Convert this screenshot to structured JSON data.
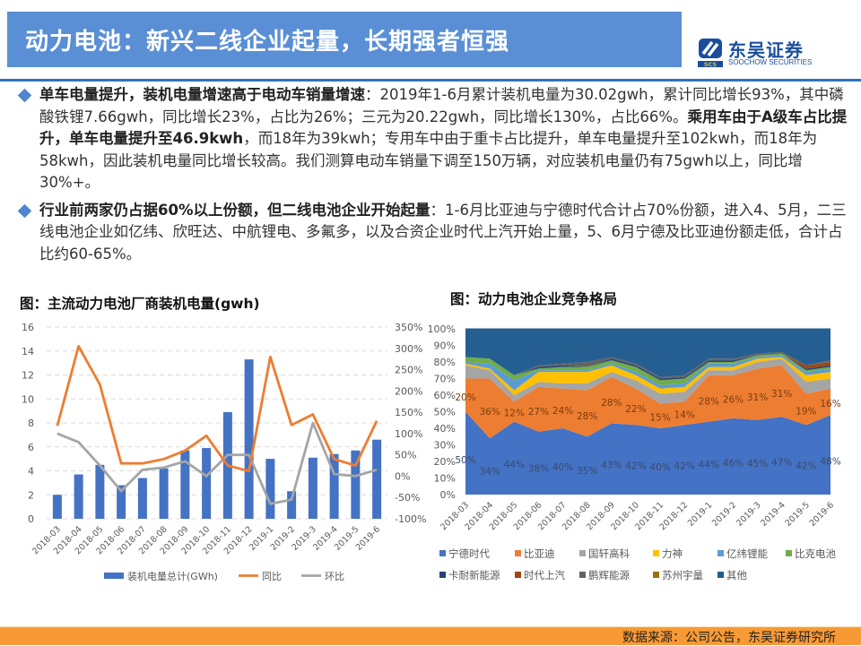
{
  "header": {
    "title": "动力电池：新兴二线企业起量，长期强者恒强",
    "logo_cn": "东吴证券",
    "logo_en": "SOOCHOW SECURITIES",
    "logo_abbr": "SCS"
  },
  "bullets": [
    {
      "bold_lead": "单车电量提升，装机电量增速高于电动车销量增速",
      "text1": "：2019年1-6月累计装机电量为30.02gwh，累计同比增长93%，其中磷酸铁锂7.66gwh，同比增长23%，占比为26%；三元为20.22gwh，同比增长130%，占比66%。",
      "bold_mid": "乘用车由于A级车占比提升，单车电量提升至46.9kwh",
      "text2": "，而18年为39kwh；专用车中由于重卡占比提升，单车电量提升至102kwh，而18年为58kwh，因此装机电量同比增长较高。我们测算电动车销量下调至150万辆，对应装机电量仍有75gwh以上，同比增30%+。"
    },
    {
      "bold_lead": "行业前两家仍占据60%以上份额，但二线电池企业开始起量",
      "text1": "：1-6月比亚迪与宁德时代合计占70%份额，进入4、5月，二三线电池企业如亿纬、欣旺达、中航锂电、多氟多，以及合资企业时代上汽开始上量，5、6月宁德及比亚迪份额走低，合计占比约60-65%。"
    }
  ],
  "charts": {
    "left_title": "图：主流动力电池厂商装机电量(gwh)",
    "right_title": "图：动力电池企业竞争格局"
  },
  "footer": {
    "source": "数据来源：公司公告，东吴证券研究所"
  },
  "chart_data": [
    {
      "type": "bar",
      "title": "图：主流动力电池厂商装机电量(gwh)",
      "categories": [
        "2018-03",
        "2018-04",
        "2018-05",
        "2018-06",
        "2018-07",
        "2018-08",
        "2018-09",
        "2018-10",
        "2018-11",
        "2018-12",
        "2019-1",
        "2019-2",
        "2019-3",
        "2019-4",
        "2019-5",
        "2019-6"
      ],
      "series": [
        {
          "name": "装机电量总计(GWh)",
          "type": "bar",
          "axis": "left",
          "color": "#4472c4",
          "values": [
            2.0,
            3.7,
            4.5,
            2.8,
            3.4,
            4.2,
            5.7,
            5.9,
            8.9,
            13.3,
            5.0,
            2.3,
            5.1,
            5.4,
            5.7,
            6.6
          ]
        },
        {
          "name": "同比",
          "type": "line",
          "axis": "right",
          "color": "#ed7d31",
          "values": [
            118,
            305,
            215,
            30,
            30,
            40,
            60,
            95,
            25,
            12,
            280,
            120,
            145,
            40,
            25,
            130
          ]
        },
        {
          "name": "环比",
          "type": "line",
          "axis": "right",
          "color": "#a5a5a5",
          "values": [
            100,
            80,
            25,
            -35,
            15,
            20,
            35,
            0,
            50,
            50,
            -65,
            -55,
            125,
            5,
            0,
            15
          ]
        }
      ],
      "ylim_left": [
        0,
        16
      ],
      "yticks_left": [
        0,
        2,
        4,
        6,
        8,
        10,
        12,
        14,
        16
      ],
      "ylim_right": [
        -100,
        350
      ],
      "yticks_right": [
        "-100%",
        "-50%",
        "0%",
        "50%",
        "100%",
        "150%",
        "200%",
        "250%",
        "300%",
        "350%"
      ],
      "grid": true,
      "legend_position": "bottom"
    },
    {
      "type": "area",
      "stacked_percent": true,
      "title": "图：动力电池企业竞争格局",
      "categories": [
        "2018-03",
        "2018-04",
        "2018-05",
        "2018-06",
        "2018-07",
        "2018-08",
        "2018-09",
        "2018-10",
        "2018-11",
        "2018-12",
        "2019-1",
        "2019-2",
        "2019-3",
        "2019-4",
        "2019-5",
        "2019-6"
      ],
      "series": [
        {
          "name": "宁德时代",
          "color": "#4472c4",
          "values": [
            50,
            34,
            44,
            38,
            40,
            35,
            43,
            42,
            40,
            42,
            44,
            46,
            45,
            47,
            42,
            48
          ]
        },
        {
          "name": "比亚迪",
          "color": "#ed7d31",
          "values": [
            20,
            36,
            12,
            27,
            24,
            28,
            28,
            22,
            15,
            14,
            28,
            26,
            31,
            31,
            19,
            16
          ]
        },
        {
          "name": "国轩高科",
          "color": "#a5a5a5",
          "values": [
            8,
            5,
            4,
            3,
            3,
            4,
            3,
            5,
            6,
            6,
            3,
            3,
            4,
            4,
            7,
            6
          ]
        },
        {
          "name": "力神",
          "color": "#ffc000",
          "values": [
            1,
            1,
            3,
            6,
            7,
            7,
            4,
            3,
            3,
            3,
            2,
            2,
            2,
            1,
            4,
            4
          ]
        },
        {
          "name": "亿纬锂能",
          "color": "#5b9bd5",
          "values": [
            1,
            3,
            6,
            1,
            1,
            1,
            1,
            2,
            2,
            2,
            2,
            2,
            1,
            1,
            2,
            2
          ]
        },
        {
          "name": "比克电池",
          "color": "#70ad47",
          "values": [
            3,
            3,
            3,
            1,
            2,
            2,
            2,
            3,
            3,
            3,
            1,
            1,
            1,
            1,
            1,
            1
          ]
        },
        {
          "name": "卡耐新能源",
          "color": "#264478",
          "values": [
            0,
            0,
            0,
            1,
            1,
            0,
            1,
            1,
            1,
            1,
            1,
            1,
            0,
            0,
            1,
            1
          ]
        },
        {
          "name": "时代上汽",
          "color": "#9e480e",
          "values": [
            0,
            0,
            0,
            0,
            0,
            0,
            0,
            0,
            0,
            0,
            0,
            0,
            0,
            0,
            2,
            2
          ]
        },
        {
          "name": "鹏辉能源",
          "color": "#636363",
          "values": [
            0,
            0,
            0,
            1,
            1,
            3,
            1,
            1,
            1,
            1,
            1,
            1,
            1,
            1,
            0,
            1
          ]
        },
        {
          "name": "苏州宇量",
          "color": "#997300",
          "values": [
            0,
            0,
            0,
            0,
            0,
            0,
            0,
            0,
            0,
            0,
            0,
            0,
            0,
            0,
            0,
            0
          ]
        },
        {
          "name": "其他",
          "color": "#255e91",
          "values": [
            17,
            18,
            28,
            22,
            21,
            20,
            17,
            21,
            29,
            28,
            18,
            18,
            15,
            14,
            22,
            19
          ]
        }
      ],
      "data_labels": {
        "宁德时代": [
          "50%",
          "34%",
          "44%",
          "38%",
          "40%",
          "35%",
          "43%",
          "42%",
          "40%",
          "42%",
          "44%",
          "46%",
          "45%",
          "47%",
          "42%",
          "48%"
        ],
        "比亚迪": [
          "20%",
          "36%",
          "12%",
          "27%",
          "24%",
          "28%",
          "28%",
          "22%",
          "15%",
          "14%",
          "28%",
          "26%",
          "31%",
          "31%",
          "19%",
          "16%"
        ]
      },
      "ylim": [
        0,
        100
      ],
      "yticks": [
        "0%",
        "10%",
        "20%",
        "30%",
        "40%",
        "50%",
        "60%",
        "70%",
        "80%",
        "90%",
        "100%"
      ],
      "legend_position": "bottom"
    }
  ]
}
